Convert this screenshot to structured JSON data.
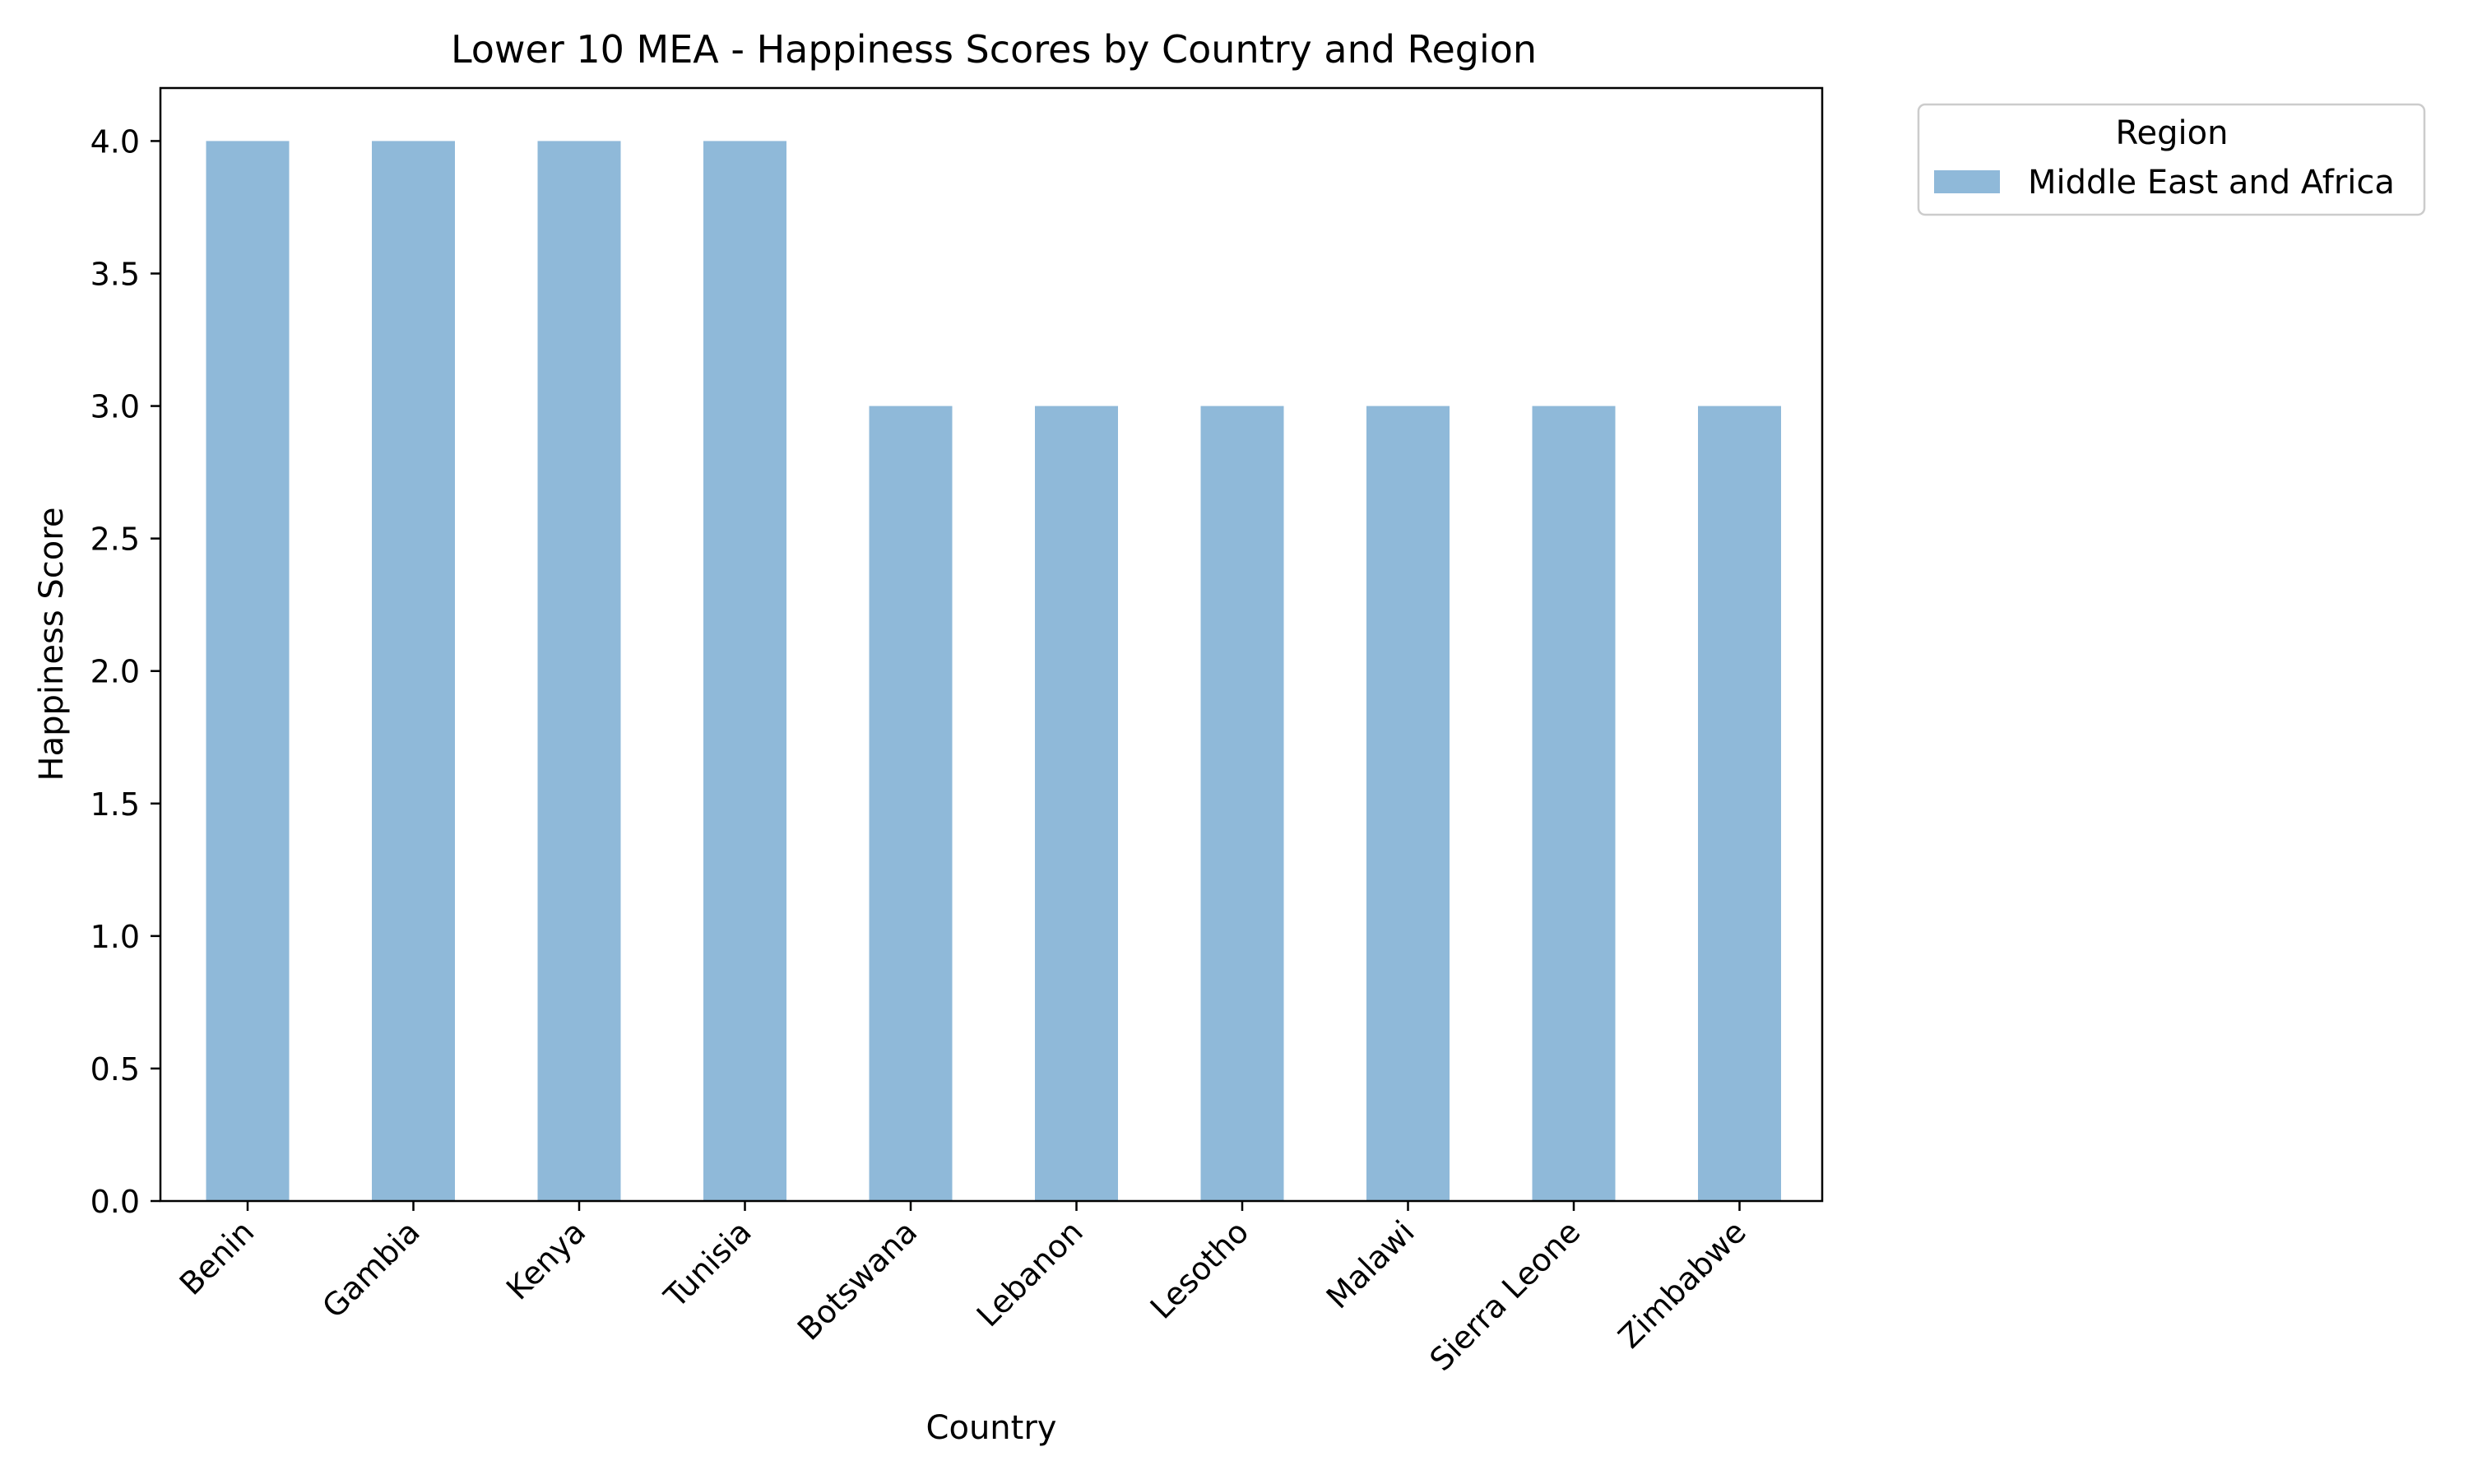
{
  "chart_data": {
    "type": "bar",
    "title": "Lower 10 MEA - Happiness Scores by Country and Region",
    "xlabel": "Country",
    "ylabel": "Happiness Score",
    "categories": [
      "Benin",
      "Gambia",
      "Kenya",
      "Tunisia",
      "Botswana",
      "Lebanon",
      "Lesotho",
      "Malawi",
      "Sierra Leone",
      "Zimbabwe"
    ],
    "series": [
      {
        "name": "Middle East and Africa",
        "values": [
          4,
          4,
          4,
          4,
          3,
          3,
          3,
          3,
          3,
          3
        ],
        "color": "#8fb9d9"
      }
    ],
    "ylim": [
      0,
      4.2
    ],
    "yticks": [
      "0.0",
      "0.5",
      "1.0",
      "1.5",
      "2.0",
      "2.5",
      "3.0",
      "3.5",
      "4.0"
    ],
    "grid": false,
    "legend": {
      "title": "Region",
      "placement": "outside-top-right"
    }
  }
}
